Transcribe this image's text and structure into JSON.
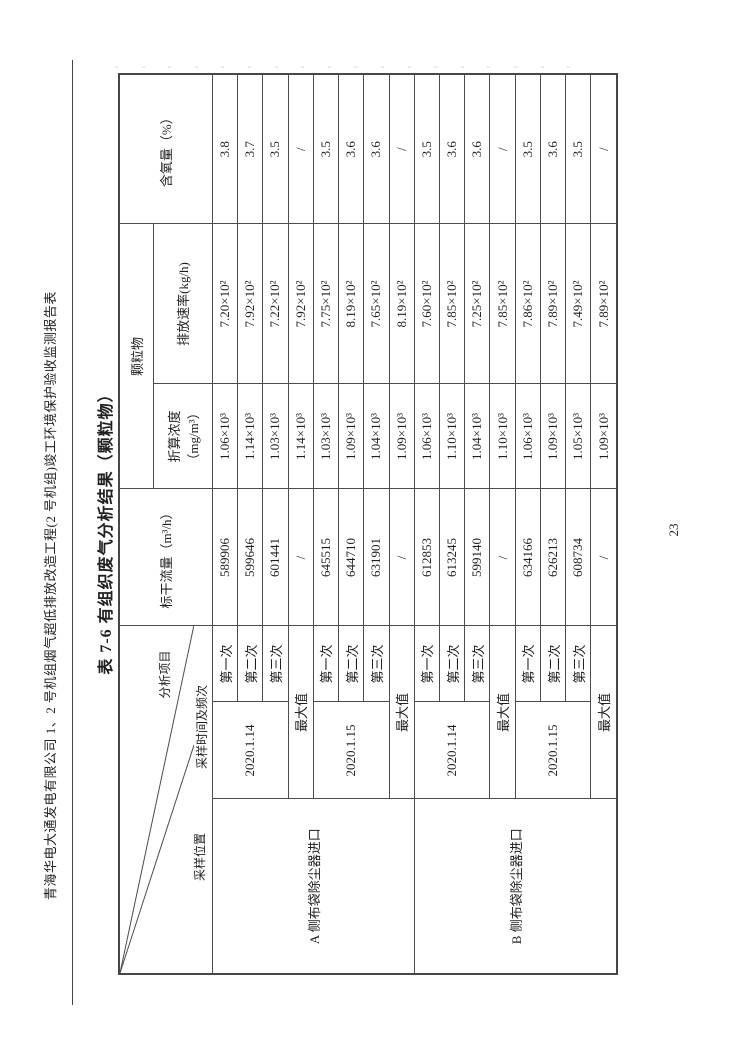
{
  "page": {
    "header": "青海华电大通发电有限公司 1、2 号机组烟气超低排放改造工程(2 号机组)竣工环境保护验收监测报告表",
    "title": "表 7-6  有组织废气分析结果（颗粒物）",
    "page_number": "23"
  },
  "colors": {
    "line": "#4c4c4c",
    "text": "#1f1f1f",
    "background": "#ffffff"
  },
  "table": {
    "corner": {
      "top_label": "分析项目",
      "middle_label": "采样时间及频次",
      "bottom_label": "采样位置"
    },
    "headers": {
      "flow": "标干流量（m³/h）",
      "pm_group": "颗粒物",
      "concentration": "折算浓度（mg/m³）",
      "rate": "排放速率(kg/h)",
      "oxygen": "含氧量（%）"
    },
    "rows": [
      [
        {
          "t": "A 侧布袋除尘器进口",
          "rs": 8
        },
        {
          "t": "2020.1.14",
          "rs": 3
        },
        {
          "t": "第一次"
        },
        {
          "t": "589906"
        },
        {
          "t": "1.06×10³"
        },
        {
          "t": "7.20×10²"
        },
        {
          "t": "3.8"
        }
      ],
      [
        {
          "t": "第二次"
        },
        {
          "t": "599646"
        },
        {
          "t": "1.14×10³"
        },
        {
          "t": "7.92×10²"
        },
        {
          "t": "3.7"
        }
      ],
      [
        {
          "t": "第三次"
        },
        {
          "t": "601441"
        },
        {
          "t": "1.03×10³"
        },
        {
          "t": "7.22×10²"
        },
        {
          "t": "3.5"
        }
      ],
      [
        {
          "t": "最大值",
          "cs": 2
        },
        {
          "t": "/"
        },
        {
          "t": "1.14×10³"
        },
        {
          "t": "7.92×10²"
        },
        {
          "t": "/"
        }
      ],
      [
        {
          "t": "2020.1.15",
          "rs": 3
        },
        {
          "t": "第一次"
        },
        {
          "t": "645515"
        },
        {
          "t": "1.03×10³"
        },
        {
          "t": "7.75×10²"
        },
        {
          "t": "3.5"
        }
      ],
      [
        {
          "t": "第二次"
        },
        {
          "t": "644710"
        },
        {
          "t": "1.09×10³"
        },
        {
          "t": "8.19×10²"
        },
        {
          "t": "3.6"
        }
      ],
      [
        {
          "t": "第三次"
        },
        {
          "t": "631901"
        },
        {
          "t": "1.04×10³"
        },
        {
          "t": "7.65×10²"
        },
        {
          "t": "3.6"
        }
      ],
      [
        {
          "t": "最大值",
          "cs": 2
        },
        {
          "t": "/"
        },
        {
          "t": "1.09×10³"
        },
        {
          "t": "8.19×10²"
        },
        {
          "t": "/"
        }
      ],
      [
        {
          "t": "B 侧布袋除尘器进口",
          "rs": 8
        },
        {
          "t": "2020.1.14",
          "rs": 3
        },
        {
          "t": "第一次"
        },
        {
          "t": "612853"
        },
        {
          "t": "1.06×10³"
        },
        {
          "t": "7.60×10²"
        },
        {
          "t": "3.5"
        }
      ],
      [
        {
          "t": "第二次"
        },
        {
          "t": "613245"
        },
        {
          "t": "1.10×10³"
        },
        {
          "t": "7.85×10²"
        },
        {
          "t": "3.6"
        }
      ],
      [
        {
          "t": "第三次"
        },
        {
          "t": "599140"
        },
        {
          "t": "1.04×10³"
        },
        {
          "t": "7.25×10²"
        },
        {
          "t": "3.6"
        }
      ],
      [
        {
          "t": "最大值",
          "cs": 2
        },
        {
          "t": "/"
        },
        {
          "t": "1.10×10³"
        },
        {
          "t": "7.85×10²"
        },
        {
          "t": "/"
        }
      ],
      [
        {
          "t": "2020.1.15",
          "rs": 3
        },
        {
          "t": "第一次"
        },
        {
          "t": "634166"
        },
        {
          "t": "1.06×10³"
        },
        {
          "t": "7.86×10²"
        },
        {
          "t": "3.5"
        }
      ],
      [
        {
          "t": "第二次"
        },
        {
          "t": "626213"
        },
        {
          "t": "1.09×10³"
        },
        {
          "t": "7.89×10²"
        },
        {
          "t": "3.6"
        }
      ],
      [
        {
          "t": "第三次"
        },
        {
          "t": "608734"
        },
        {
          "t": "1.05×10³"
        },
        {
          "t": "7.49×10²"
        },
        {
          "t": "3.5"
        }
      ],
      [
        {
          "t": "最大值",
          "cs": 2
        },
        {
          "t": "/"
        },
        {
          "t": "1.09×10³"
        },
        {
          "t": "7.89×10²"
        },
        {
          "t": "/"
        }
      ]
    ]
  }
}
